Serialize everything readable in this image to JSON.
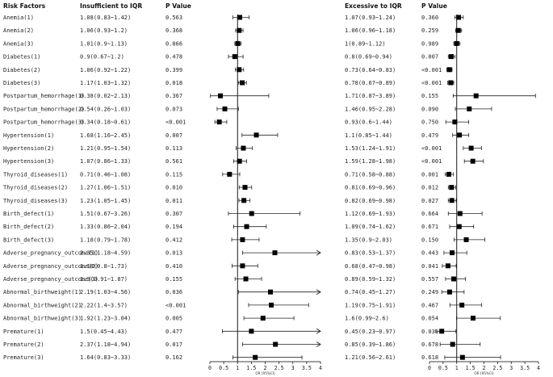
{
  "headers": {
    "risk": "Risk Factors",
    "ci1": "Insufficient to IQR",
    "p1": "P Value",
    "ci2": "Excessive to IQR",
    "p2": "P Value"
  },
  "chart_data": [
    {
      "type": "forest",
      "panel": "Insufficient to IQR",
      "xlabel": "OR (95%CI)",
      "xlim": [
        0,
        4
      ],
      "ticks": [
        "0",
        "0.5",
        "1",
        "1.5",
        "2",
        "2.5",
        "3",
        "3.5",
        "4"
      ],
      "reference_line": 1,
      "rows": [
        {
          "label": "Anemia(1)",
          "or": 1.08,
          "lo": 0.83,
          "hi": 1.42,
          "ci_text": "1.08(0.83~1.42)",
          "p": "0.563"
        },
        {
          "label": "Anemia(2)",
          "or": 1.06,
          "lo": 0.93,
          "hi": 1.2,
          "ci_text": "1.06(0.93~1.2)",
          "p": "0.368"
        },
        {
          "label": "Anemia(3)",
          "or": 1.01,
          "lo": 0.9,
          "hi": 1.13,
          "ci_text": "1.01(0.9~1.13)",
          "p": "0.866"
        },
        {
          "label": "Diabetes(1)",
          "or": 0.9,
          "lo": 0.67,
          "hi": 1.2,
          "ci_text": "0.9(0.67~1.2)",
          "p": "0.478"
        },
        {
          "label": "Diabetes(2)",
          "or": 1.06,
          "lo": 0.92,
          "hi": 1.22,
          "ci_text": "1.06(0.92~1.22)",
          "p": "0.399"
        },
        {
          "label": "Diabetes(3)",
          "or": 1.17,
          "lo": 1.03,
          "hi": 1.32,
          "ci_text": "1.17(1.03~1.32)",
          "p": "0.018"
        },
        {
          "label": "Postpartum_hemorrhage(1)",
          "or": 0.38,
          "lo": 0.02,
          "hi": 2.13,
          "ci_text": "0.38(0.02~2.13)",
          "p": "0.367"
        },
        {
          "label": "Postpartum_hemorrhage(2)",
          "or": 0.54,
          "lo": 0.26,
          "hi": 1.03,
          "ci_text": "0.54(0.26~1.03)",
          "p": "0.073"
        },
        {
          "label": "Postpartum_hemorrhage(3)",
          "or": 0.34,
          "lo": 0.18,
          "hi": 0.61,
          "ci_text": "0.34(0.18~0.61)",
          "p": "<0.001"
        },
        {
          "label": "Hypertension(1)",
          "or": 1.68,
          "lo": 1.16,
          "hi": 2.45,
          "ci_text": "1.68(1.16~2.45)",
          "p": "0.007"
        },
        {
          "label": "Hypertension(2)",
          "or": 1.21,
          "lo": 0.95,
          "hi": 1.54,
          "ci_text": "1.21(0.95~1.54)",
          "p": "0.113"
        },
        {
          "label": "Hypertension(3)",
          "or": 1.07,
          "lo": 0.86,
          "hi": 1.33,
          "ci_text": "1.07(0.86~1.33)",
          "p": "0.561"
        },
        {
          "label": "Thyroid_diseases(1)",
          "or": 0.71,
          "lo": 0.46,
          "hi": 1.08,
          "ci_text": "0.71(0.46~1.08)",
          "p": "0.115"
        },
        {
          "label": "Thyroid_diseases(2)",
          "or": 1.27,
          "lo": 1.06,
          "hi": 1.51,
          "ci_text": "1.27(1.06~1.51)",
          "p": "0.010"
        },
        {
          "label": "Thyroid_diseases(3)",
          "or": 1.23,
          "lo": 1.05,
          "hi": 1.45,
          "ci_text": "1.23(1.05~1.45)",
          "p": "0.011"
        },
        {
          "label": "Birth_defect(1)",
          "or": 1.51,
          "lo": 0.67,
          "hi": 3.26,
          "ci_text": "1.51(0.67~3.26)",
          "p": "0.307"
        },
        {
          "label": "Birth_defect(2)",
          "or": 1.33,
          "lo": 0.86,
          "hi": 2.04,
          "ci_text": "1.33(0.86~2.04)",
          "p": "0.194"
        },
        {
          "label": "Birth_defect(3)",
          "or": 1.18,
          "lo": 0.79,
          "hi": 1.78,
          "ci_text": "1.18(0.79~1.78)",
          "p": "0.412"
        },
        {
          "label": "Adverse_pregnancy_outcome(1)",
          "or": 2.35,
          "lo": 1.18,
          "hi": 4.59,
          "ci_text": "2.35(1.18~4.59)",
          "p": "0.013"
        },
        {
          "label": "Adverse_pregnancy_outcome(2)",
          "or": 1.18,
          "lo": 0.8,
          "hi": 1.73,
          "ci_text": "1.18(0.8~1.73)",
          "p": "0.410"
        },
        {
          "label": "Adverse_pregnancy_outcome(3)",
          "or": 1.3,
          "lo": 0.91,
          "hi": 1.87,
          "ci_text": "1.3(0.91~1.87)",
          "p": "0.155"
        },
        {
          "label": "Abnormal_birthweight(1)",
          "or": 2.19,
          "lo": 1.03,
          "hi": 4.56,
          "ci_text": "2.19(1.03~4.56)",
          "p": "0.036"
        },
        {
          "label": "Abnormal_birthweight(2)",
          "or": 2.22,
          "lo": 1.4,
          "hi": 3.57,
          "ci_text": "2.22(1.4~3.57)",
          "p": "<0.001"
        },
        {
          "label": "Abnormal_birthweight(3)",
          "or": 1.92,
          "lo": 1.23,
          "hi": 3.04,
          "ci_text": "1.92(1.23~3.04)",
          "p": "0.005"
        },
        {
          "label": "Premature(1)",
          "or": 1.5,
          "lo": 0.45,
          "hi": 4.43,
          "ci_text": "1.5(0.45~4.43)",
          "p": "0.477"
        },
        {
          "label": "Premature(2)",
          "or": 2.37,
          "lo": 1.18,
          "hi": 4.94,
          "ci_text": "2.37(1.18~4.94)",
          "p": "0.017"
        },
        {
          "label": "Premature(3)",
          "or": 1.64,
          "lo": 0.83,
          "hi": 3.33,
          "ci_text": "1.64(0.83~3.33)",
          "p": "0.162"
        }
      ]
    },
    {
      "type": "forest",
      "panel": "Excessive to IQR",
      "xlabel": "OR (95%CI)",
      "xlim": [
        0,
        4
      ],
      "ticks": [
        "0",
        "0.5",
        "1",
        "1.5",
        "2",
        "2.5",
        "3",
        "3.5",
        "4"
      ],
      "reference_line": 1,
      "rows": [
        {
          "label": "Anemia(1)",
          "or": 1.07,
          "lo": 0.93,
          "hi": 1.24,
          "ci_text": "1.07(0.93~1.24)",
          "p": "0.360"
        },
        {
          "label": "Anemia(2)",
          "or": 1.06,
          "lo": 0.96,
          "hi": 1.18,
          "ci_text": "1.06(0.96~1.18)",
          "p": "0.259"
        },
        {
          "label": "Anemia(3)",
          "or": 1,
          "lo": 0.89,
          "hi": 1.12,
          "ci_text": "1(0.89~1.12)",
          "p": "0.989"
        },
        {
          "label": "Diabetes(1)",
          "or": 0.8,
          "lo": 0.69,
          "hi": 0.94,
          "ci_text": "0.8(0.69~0.94)",
          "p": "0.007"
        },
        {
          "label": "Diabetes(2)",
          "or": 0.73,
          "lo": 0.64,
          "hi": 0.83,
          "ci_text": "0.73(0.64~0.83)",
          "p": "<0.001"
        },
        {
          "label": "Diabetes(3)",
          "or": 0.78,
          "lo": 0.67,
          "hi": 0.89,
          "ci_text": "0.78(0.67~0.89)",
          "p": "<0.001"
        },
        {
          "label": "Postpartum_hemorrhage(1)",
          "or": 1.71,
          "lo": 0.87,
          "hi": 3.89,
          "ci_text": "1.71(0.87~3.89)",
          "p": "0.155"
        },
        {
          "label": "Postpartum_hemorrhage(2)",
          "or": 1.46,
          "lo": 0.95,
          "hi": 2.28,
          "ci_text": "1.46(0.95~2.28)",
          "p": "0.090"
        },
        {
          "label": "Postpartum_hemorrhage(3)",
          "or": 0.93,
          "lo": 0.6,
          "hi": 1.44,
          "ci_text": "0.93(0.6~1.44)",
          "p": "0.750"
        },
        {
          "label": "Hypertension(1)",
          "or": 1.1,
          "lo": 0.85,
          "hi": 1.44,
          "ci_text": "1.1(0.85~1.44)",
          "p": "0.479"
        },
        {
          "label": "Hypertension(2)",
          "or": 1.53,
          "lo": 1.24,
          "hi": 1.91,
          "ci_text": "1.53(1.24~1.91)",
          "p": "<0.001"
        },
        {
          "label": "Hypertension(3)",
          "or": 1.59,
          "lo": 1.28,
          "hi": 1.98,
          "ci_text": "1.59(1.28~1.98)",
          "p": "<0.001"
        },
        {
          "label": "Thyroid_diseases(1)",
          "or": 0.71,
          "lo": 0.58,
          "hi": 0.88,
          "ci_text": "0.71(0.58~0.88)",
          "p": "0.001"
        },
        {
          "label": "Thyroid_diseases(2)",
          "or": 0.81,
          "lo": 0.69,
          "hi": 0.96,
          "ci_text": "0.81(0.69~0.96)",
          "p": "0.012"
        },
        {
          "label": "Thyroid_diseases(3)",
          "or": 0.82,
          "lo": 0.69,
          "hi": 0.98,
          "ci_text": "0.82(0.69~0.98)",
          "p": "0.027"
        },
        {
          "label": "Birth_defect(1)",
          "or": 1.12,
          "lo": 0.69,
          "hi": 1.93,
          "ci_text": "1.12(0.69~1.93)",
          "p": "0.664"
        },
        {
          "label": "Birth_defect(2)",
          "or": 1.09,
          "lo": 0.74,
          "hi": 1.62,
          "ci_text": "1.09(0.74~1.62)",
          "p": "0.671"
        },
        {
          "label": "Birth_defect(3)",
          "or": 1.35,
          "lo": 0.9,
          "hi": 2.03,
          "ci_text": "1.35(0.9~2.03)",
          "p": "0.150"
        },
        {
          "label": "Adverse_pregnancy_outcome(1)",
          "or": 0.83,
          "lo": 0.53,
          "hi": 1.37,
          "ci_text": "0.83(0.53~1.37)",
          "p": "0.443"
        },
        {
          "label": "Adverse_pregnancy_outcome(2)",
          "or": 0.68,
          "lo": 0.47,
          "hi": 0.98,
          "ci_text": "0.68(0.47~0.98)",
          "p": "0.041"
        },
        {
          "label": "Adverse_pregnancy_outcome(3)",
          "or": 0.89,
          "lo": 0.59,
          "hi": 1.32,
          "ci_text": "0.89(0.59~1.32)",
          "p": "0.557"
        },
        {
          "label": "Abnormal_birthweight(1)",
          "or": 0.74,
          "lo": 0.45,
          "hi": 1.27,
          "ci_text": "0.74(0.45~1.27)",
          "p": "0.249"
        },
        {
          "label": "Abnormal_birthweight(2)",
          "or": 1.19,
          "lo": 0.75,
          "hi": 1.91,
          "ci_text": "1.19(0.75~1.91)",
          "p": "0.467"
        },
        {
          "label": "Abnormal_birthweight(3)",
          "or": 1.6,
          "lo": 0.99,
          "hi": 2.6,
          "ci_text": "1.6(0.99~2.6)",
          "p": "0.054"
        },
        {
          "label": "Premature(1)",
          "or": 0.45,
          "lo": 0.23,
          "hi": 0.97,
          "ci_text": "0.45(0.23~0.97)",
          "p": "0.031"
        },
        {
          "label": "Premature(2)",
          "or": 0.85,
          "lo": 0.39,
          "hi": 1.86,
          "ci_text": "0.85(0.39~1.86)",
          "p": "0.678"
        },
        {
          "label": "Premature(3)",
          "or": 1.21,
          "lo": 0.56,
          "hi": 2.61,
          "ci_text": "1.21(0.56~2.61)",
          "p": "0.618"
        }
      ]
    }
  ]
}
